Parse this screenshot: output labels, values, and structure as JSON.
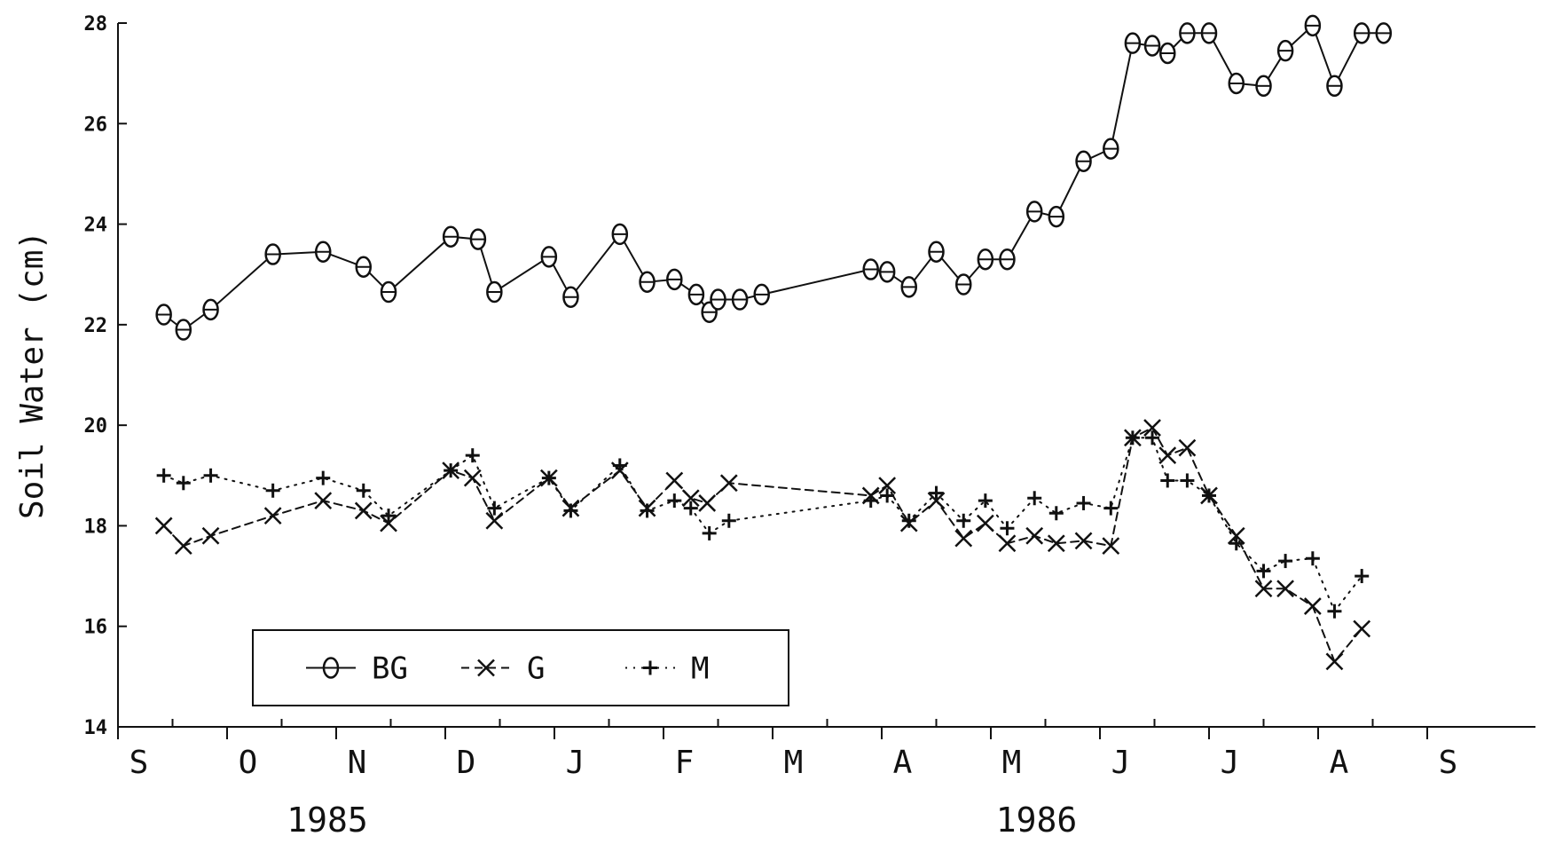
{
  "chart_data": {
    "type": "line",
    "title": "",
    "ylabel": "Soil Water (cm)",
    "xlabel": "",
    "ylim": [
      14,
      28
    ],
    "yticks": [
      14,
      16,
      18,
      20,
      22,
      24,
      26,
      28
    ],
    "xlim": [
      0,
      12.3
    ],
    "months": [
      "S",
      "O",
      "N",
      "D",
      "J",
      "F",
      "M",
      "A",
      "M",
      "J",
      "J",
      "A",
      "S"
    ],
    "years": [
      {
        "label": "1985",
        "x": 2.0
      },
      {
        "label": "1986",
        "x": 8.5
      }
    ],
    "grid": false,
    "legend": {
      "position": "bottom-left",
      "boxed": true
    },
    "series": [
      {
        "name": "BG",
        "marker": "circle",
        "line_style": "solid",
        "x": [
          0.42,
          0.6,
          0.85,
          1.42,
          1.88,
          2.25,
          2.48,
          3.05,
          3.3,
          3.45,
          3.95,
          4.15,
          4.6,
          4.85,
          5.1,
          5.3,
          5.42,
          5.5,
          5.7,
          5.9,
          6.9,
          7.05,
          7.25,
          7.5,
          7.75,
          7.95,
          8.15,
          8.4,
          8.6,
          8.85,
          9.1,
          9.3,
          9.48,
          9.62,
          9.8,
          10.0,
          10.25,
          10.5,
          10.7,
          10.95,
          11.15,
          11.4,
          11.6
        ],
        "values": [
          22.2,
          21.9,
          22.3,
          23.4,
          23.45,
          23.15,
          22.65,
          23.75,
          23.7,
          22.65,
          23.35,
          22.55,
          23.8,
          22.85,
          22.9,
          22.6,
          22.25,
          22.5,
          22.5,
          22.6,
          23.1,
          23.05,
          22.75,
          23.45,
          22.8,
          23.3,
          23.3,
          24.25,
          24.15,
          25.25,
          25.5,
          27.6,
          27.55,
          27.4,
          27.8,
          27.8,
          26.8,
          26.75,
          27.45,
          27.95,
          26.75,
          27.8,
          27.8
        ],
        "point_indices_shown": "all_except_connectors"
      },
      {
        "name": "G",
        "marker": "x",
        "line_style": "dashed",
        "x": [
          0.42,
          0.6,
          0.85,
          1.42,
          1.88,
          2.25,
          2.48,
          3.05,
          3.25,
          3.45,
          3.95,
          4.15,
          4.6,
          4.85,
          5.1,
          5.25,
          5.4,
          5.6,
          6.9,
          7.05,
          7.25,
          7.5,
          7.75,
          7.95,
          8.15,
          8.4,
          8.6,
          8.85,
          9.1,
          9.3,
          9.48,
          9.62,
          9.8,
          10.0,
          10.25,
          10.5,
          10.7,
          10.95,
          11.15,
          11.4
        ],
        "values": [
          18.0,
          17.6,
          17.8,
          18.2,
          18.5,
          18.3,
          18.05,
          19.1,
          18.95,
          18.1,
          18.95,
          18.35,
          19.1,
          18.35,
          18.9,
          18.55,
          18.45,
          18.85,
          18.6,
          18.8,
          18.05,
          18.5,
          17.75,
          18.05,
          17.65,
          17.8,
          17.65,
          17.7,
          17.6,
          19.75,
          19.95,
          19.4,
          19.55,
          18.6,
          17.8,
          16.75,
          16.75,
          16.4,
          15.3,
          15.95
        ]
      },
      {
        "name": "M",
        "marker": "plus",
        "line_style": "dotted",
        "x": [
          0.42,
          0.6,
          0.85,
          1.42,
          1.88,
          2.25,
          2.48,
          3.05,
          3.25,
          3.45,
          3.95,
          4.15,
          4.6,
          4.85,
          5.1,
          5.25,
          5.42,
          5.6,
          6.9,
          7.05,
          7.25,
          7.5,
          7.75,
          7.95,
          8.15,
          8.4,
          8.6,
          8.85,
          9.1,
          9.3,
          9.48,
          9.62,
          9.8,
          10.0,
          10.25,
          10.5,
          10.7,
          10.95,
          11.15,
          11.4
        ],
        "values": [
          19.0,
          18.85,
          19.0,
          18.7,
          18.95,
          18.7,
          18.2,
          19.1,
          19.4,
          18.35,
          18.95,
          18.3,
          19.2,
          18.3,
          18.5,
          18.35,
          17.85,
          18.1,
          18.5,
          18.6,
          18.1,
          18.65,
          18.1,
          18.5,
          17.95,
          18.55,
          18.25,
          18.45,
          18.35,
          19.75,
          19.75,
          18.9,
          18.9,
          18.6,
          17.65,
          17.1,
          17.3,
          17.35,
          16.3,
          17.0
        ]
      }
    ]
  }
}
